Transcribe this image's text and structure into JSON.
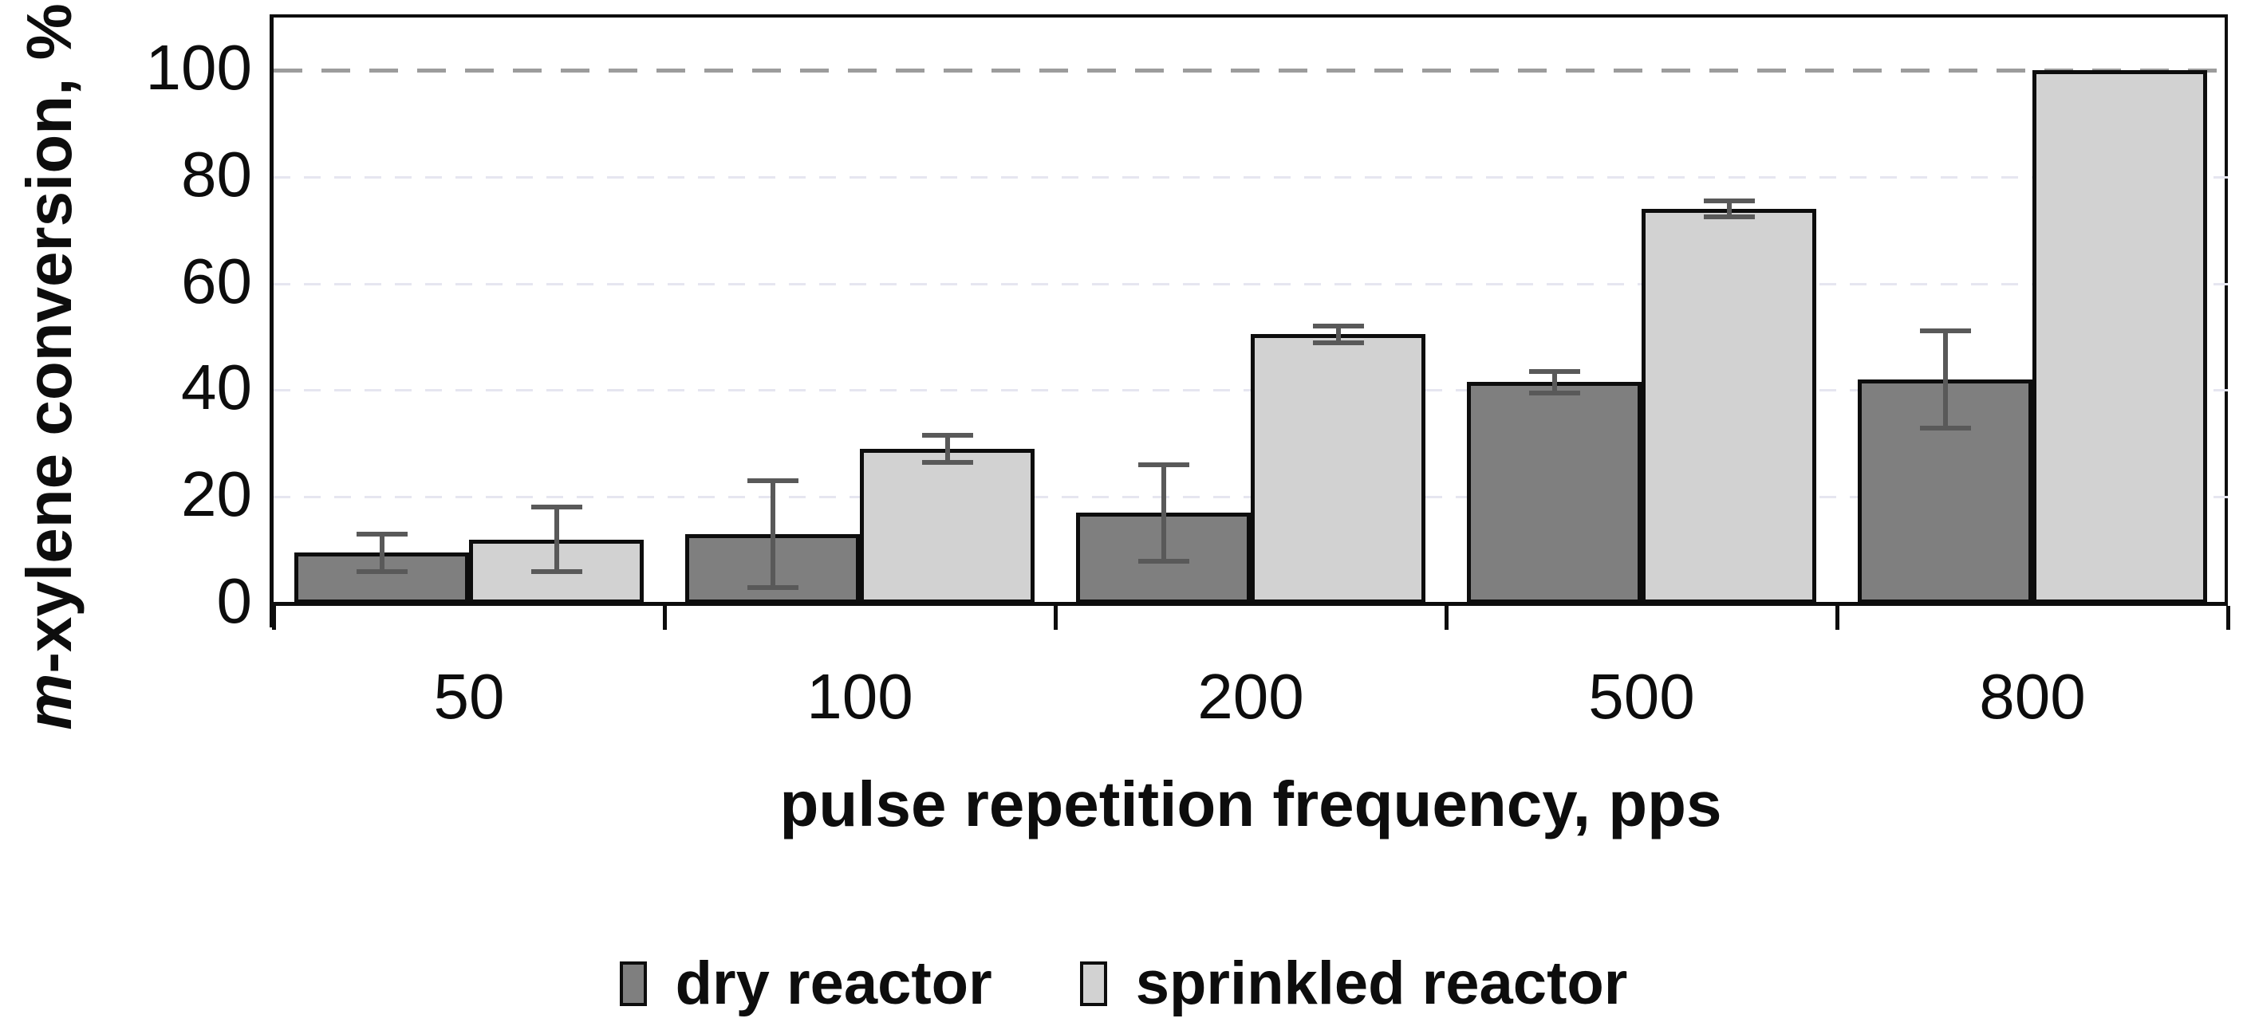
{
  "chart_data": {
    "type": "bar",
    "title": "",
    "categories": [
      "50",
      "100",
      "200",
      "500",
      "800"
    ],
    "series": [
      {
        "name": "dry reactor",
        "color": "#7f7f7f",
        "values": [
          9.5,
          13,
          17,
          41.5,
          42
        ],
        "error_bars": [
          4,
          10.5,
          9.5,
          2.5,
          9.5
        ]
      },
      {
        "name": "sprinkled reactor",
        "color": "#d2d2d2",
        "values": [
          12,
          29,
          50.5,
          74,
          100
        ],
        "error_bars": [
          6.5,
          3,
          2,
          2,
          0
        ]
      }
    ],
    "xlabel": "pulse repetition frequency, pps",
    "ylabel": "m-xylene conversion, %",
    "ylabel_italic_prefix": "m",
    "ylabel_rest": "-xylene conversion, %",
    "ylim": [
      0,
      100
    ],
    "yticks": [
      0,
      20,
      40,
      60,
      80,
      100
    ],
    "grid": "horizontal dashed, light minor lines at 20/40/60/80, darker dashed line at 100",
    "legend_position": "bottom center",
    "error_bar_color": "#595959",
    "axis_color": "#0d0d0d",
    "gridline_minor_color": "#e6e6f0",
    "gridline_major_color": "#9c9c9c"
  },
  "legend": {
    "items": [
      {
        "label": "dry reactor",
        "color": "#7f7f7f"
      },
      {
        "label": "sprinkled reactor",
        "color": "#d2d2d2"
      }
    ]
  }
}
